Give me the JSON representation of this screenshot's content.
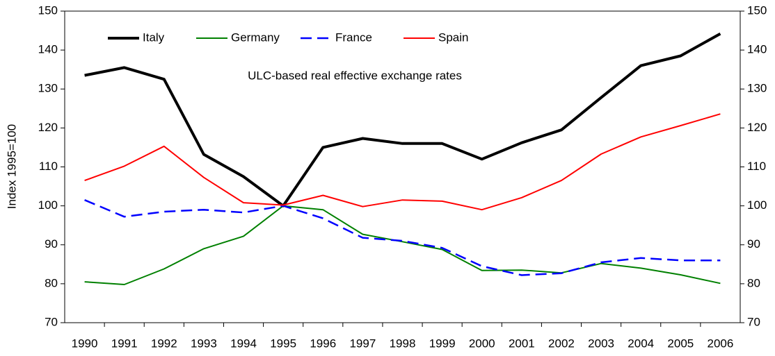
{
  "chart_data": {
    "type": "line",
    "annotation": "ULC-based real effective exchange rates",
    "y_label": "Index 1995=100",
    "categories": [
      "1990",
      "1991",
      "1992",
      "1993",
      "1994",
      "1995",
      "1996",
      "1997",
      "1998",
      "1999",
      "2000",
      "2001",
      "2002",
      "2003",
      "2004",
      "2005",
      "2006"
    ],
    "series": [
      {
        "name": "Italy",
        "color": "#000000",
        "line_width": 4,
        "line_style": "solid",
        "values": [
          133.5,
          135.5,
          132.5,
          113.2,
          107.5,
          100,
          115,
          117.3,
          116,
          116,
          112,
          116.2,
          119.5,
          127.8,
          136,
          138.5,
          144.2
        ]
      },
      {
        "name": "Germany",
        "color": "#008000",
        "line_width": 2,
        "line_style": "solid",
        "values": [
          80.5,
          79.8,
          83.8,
          89,
          92.2,
          100,
          99,
          92.7,
          90.8,
          88.8,
          83.4,
          83.5,
          82.8,
          85.2,
          84,
          82.3,
          80.1
        ]
      },
      {
        "name": "France",
        "color": "#0000ff",
        "line_width": 2.5,
        "line_style": "dashed",
        "values": [
          101.5,
          97.2,
          98.5,
          99,
          98.3,
          100,
          96.8,
          91.8,
          91,
          89.2,
          84.5,
          82.2,
          82.7,
          85.5,
          86.6,
          86,
          86
        ]
      },
      {
        "name": "Spain",
        "color": "#ff0000",
        "line_width": 2,
        "line_style": "solid",
        "values": [
          106.5,
          110.2,
          115.3,
          107.3,
          100.8,
          100.2,
          102.7,
          99.8,
          101.5,
          101.2,
          99,
          102.1,
          106.5,
          113.3,
          117.7,
          120.6,
          123.6
        ]
      }
    ],
    "ylim": [
      70,
      150
    ],
    "yticks": [
      70,
      80,
      90,
      100,
      110,
      120,
      130,
      140,
      150
    ],
    "y2lim": [
      70,
      150
    ],
    "y2ticks": [
      70,
      80,
      90,
      100,
      110,
      120,
      130,
      140,
      150
    ],
    "grid": false,
    "legend": "top"
  }
}
